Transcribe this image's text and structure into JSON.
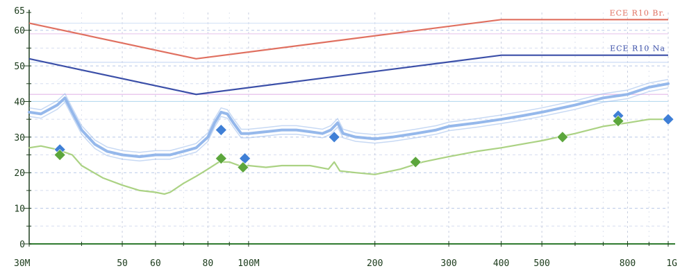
{
  "chart_data": {
    "type": "line",
    "title": "",
    "xlabel": "",
    "ylabel": "",
    "x_scale": "log",
    "xlim": [
      "30M",
      "1G"
    ],
    "ylim": [
      0,
      65
    ],
    "x_ticks": [
      {
        "label": "30M",
        "value": 30
      },
      {
        "label": "50",
        "value": 50
      },
      {
        "label": "60",
        "value": 60
      },
      {
        "label": "80",
        "value": 80
      },
      {
        "label": "100M",
        "value": 100
      },
      {
        "label": "200",
        "value": 200
      },
      {
        "label": "300",
        "value": 300
      },
      {
        "label": "400",
        "value": 400
      },
      {
        "label": "500",
        "value": 500
      },
      {
        "label": "800",
        "value": 800
      },
      {
        "label": "1G",
        "value": 1000
      }
    ],
    "y_ticks": [
      {
        "label": "0",
        "value": 0
      },
      {
        "label": "10",
        "value": 10
      },
      {
        "label": "20",
        "value": 20
      },
      {
        "label": "30",
        "value": 30
      },
      {
        "label": "40",
        "value": 40
      },
      {
        "label": "50",
        "value": 50
      },
      {
        "label": "60",
        "value": 60
      },
      {
        "label": "65",
        "value": 65
      }
    ],
    "grid": true,
    "limit_lines": [
      {
        "name": "ECE R10 Br.",
        "color": "#e07060",
        "points": [
          [
            30,
            62
          ],
          [
            75,
            52
          ],
          [
            400,
            63
          ],
          [
            1000,
            63
          ]
        ]
      },
      {
        "name": "ECE R10 Na",
        "color": "#3b4fa8",
        "points": [
          [
            30,
            52
          ],
          [
            75,
            42
          ],
          [
            400,
            53
          ],
          [
            1000,
            53
          ]
        ]
      }
    ],
    "series": [
      {
        "color": "#8fb4ea",
        "points": [
          [
            30,
            37
          ],
          [
            32,
            36.5
          ],
          [
            35,
            39
          ],
          [
            36.5,
            41
          ],
          [
            38,
            37
          ],
          [
            40,
            32
          ],
          [
            43,
            28
          ],
          [
            46,
            26
          ],
          [
            50,
            25
          ],
          [
            55,
            24.5
          ],
          [
            60,
            25
          ],
          [
            65,
            25
          ],
          [
            70,
            26
          ],
          [
            75,
            27
          ],
          [
            80,
            30
          ],
          [
            83,
            34
          ],
          [
            86,
            37
          ],
          [
            89,
            36.5
          ],
          [
            92,
            34
          ],
          [
            96,
            31
          ],
          [
            100,
            31
          ],
          [
            110,
            31.5
          ],
          [
            120,
            32
          ],
          [
            130,
            32
          ],
          [
            140,
            31.5
          ],
          [
            150,
            31
          ],
          [
            157,
            32
          ],
          [
            163,
            34
          ],
          [
            168,
            31
          ],
          [
            180,
            30
          ],
          [
            200,
            29.5
          ],
          [
            220,
            30
          ],
          [
            250,
            31
          ],
          [
            280,
            32
          ],
          [
            300,
            33
          ],
          [
            350,
            34
          ],
          [
            400,
            35
          ],
          [
            450,
            36
          ],
          [
            500,
            37
          ],
          [
            600,
            39
          ],
          [
            700,
            41
          ],
          [
            800,
            42
          ],
          [
            900,
            44
          ],
          [
            1000,
            45
          ]
        ]
      },
      {
        "color": "#a7d07c",
        "points": [
          [
            30,
            27
          ],
          [
            32,
            27.5
          ],
          [
            35,
            26.5
          ],
          [
            38,
            25
          ],
          [
            40,
            22
          ],
          [
            45,
            18.5
          ],
          [
            50,
            16.5
          ],
          [
            55,
            15
          ],
          [
            60,
            14.5
          ],
          [
            63,
            14
          ],
          [
            65,
            14.5
          ],
          [
            70,
            17
          ],
          [
            75,
            19
          ],
          [
            80,
            21
          ],
          [
            85,
            23
          ],
          [
            90,
            23
          ],
          [
            95,
            22
          ],
          [
            100,
            22
          ],
          [
            110,
            21.5
          ],
          [
            120,
            22
          ],
          [
            140,
            22
          ],
          [
            155,
            21
          ],
          [
            160,
            23
          ],
          [
            165,
            20.5
          ],
          [
            180,
            20
          ],
          [
            200,
            19.5
          ],
          [
            230,
            21
          ],
          [
            260,
            23
          ],
          [
            300,
            24.5
          ],
          [
            350,
            26
          ],
          [
            400,
            27
          ],
          [
            500,
            29
          ],
          [
            600,
            31
          ],
          [
            700,
            33
          ],
          [
            800,
            34
          ],
          [
            900,
            35
          ],
          [
            1000,
            35
          ]
        ]
      }
    ],
    "markers": [
      {
        "color": "#3f7fd6",
        "points": [
          [
            35.5,
            26.5
          ],
          [
            86,
            32
          ],
          [
            98,
            24
          ],
          [
            160,
            30
          ],
          [
            760,
            36
          ],
          [
            1000,
            35
          ]
        ]
      },
      {
        "color": "#5ca63c",
        "points": [
          [
            35.5,
            25
          ],
          [
            86,
            24
          ],
          [
            97,
            21.5
          ],
          [
            250,
            23
          ],
          [
            560,
            30
          ],
          [
            760,
            34.5
          ]
        ]
      }
    ]
  }
}
